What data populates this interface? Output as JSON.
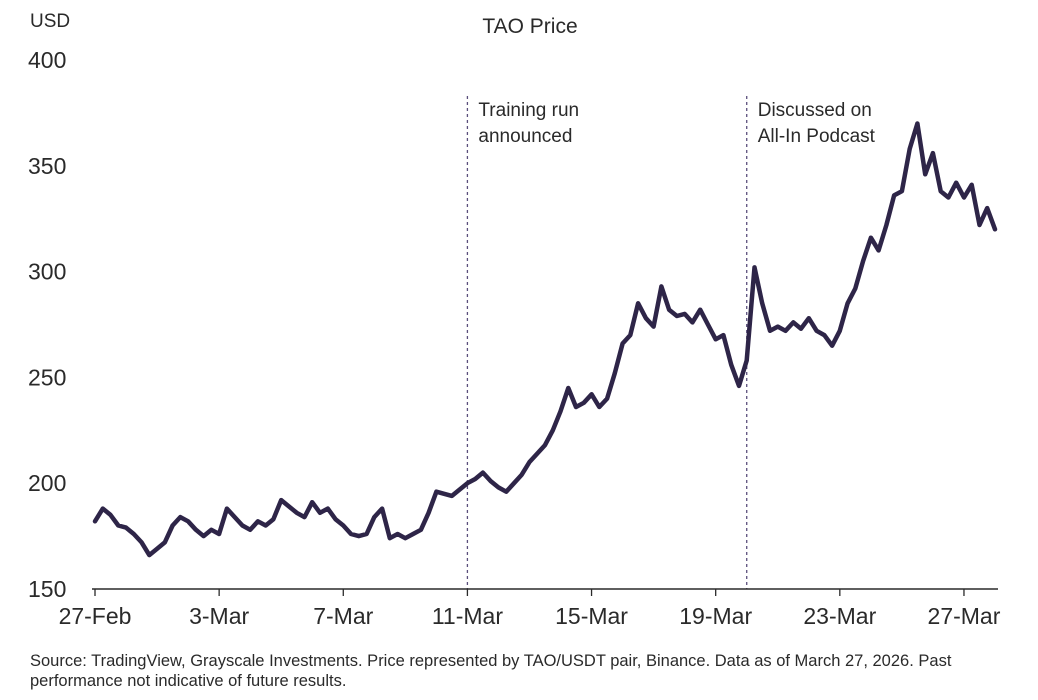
{
  "chart_data": {
    "type": "line",
    "title": "TAO Price",
    "ylabel": "USD",
    "xlabel": "",
    "ylim": [
      150,
      400
    ],
    "yticks": [
      150,
      200,
      250,
      300,
      350,
      400
    ],
    "xlim": [
      "2026-02-27",
      "2026-03-28"
    ],
    "xticks": [
      {
        "date": "2026-02-27",
        "label": "27-Feb"
      },
      {
        "date": "2026-03-03",
        "label": "3-Mar"
      },
      {
        "date": "2026-03-07",
        "label": "7-Mar"
      },
      {
        "date": "2026-03-11",
        "label": "11-Mar"
      },
      {
        "date": "2026-03-15",
        "label": "15-Mar"
      },
      {
        "date": "2026-03-19",
        "label": "19-Mar"
      },
      {
        "date": "2026-03-23",
        "label": "23-Mar"
      },
      {
        "date": "2026-03-27",
        "label": "27-Mar"
      }
    ],
    "grid": false,
    "line_color": "#2e2548",
    "series": [
      {
        "points": [
          [
            "2026-02-27 00:00",
            182
          ],
          [
            "2026-02-27 06:00",
            188
          ],
          [
            "2026-02-27 12:00",
            185
          ],
          [
            "2026-02-27 18:00",
            180
          ],
          [
            "2026-02-28 00:00",
            179
          ],
          [
            "2026-02-28 06:00",
            176
          ],
          [
            "2026-02-28 12:00",
            172
          ],
          [
            "2026-02-28 18:00",
            166
          ],
          [
            "2026-03-01 00:00",
            169
          ],
          [
            "2026-03-01 06:00",
            172
          ],
          [
            "2026-03-01 12:00",
            180
          ],
          [
            "2026-03-01 18:00",
            184
          ],
          [
            "2026-03-02 00:00",
            182
          ],
          [
            "2026-03-02 06:00",
            178
          ],
          [
            "2026-03-02 12:00",
            175
          ],
          [
            "2026-03-02 18:00",
            178
          ],
          [
            "2026-03-03 00:00",
            176
          ],
          [
            "2026-03-03 06:00",
            188
          ],
          [
            "2026-03-03 12:00",
            184
          ],
          [
            "2026-03-03 18:00",
            180
          ],
          [
            "2026-03-04 00:00",
            178
          ],
          [
            "2026-03-04 06:00",
            182
          ],
          [
            "2026-03-04 12:00",
            180
          ],
          [
            "2026-03-04 18:00",
            183
          ],
          [
            "2026-03-05 00:00",
            192
          ],
          [
            "2026-03-05 06:00",
            189
          ],
          [
            "2026-03-05 12:00",
            186
          ],
          [
            "2026-03-05 18:00",
            184
          ],
          [
            "2026-03-06 00:00",
            191
          ],
          [
            "2026-03-06 06:00",
            186
          ],
          [
            "2026-03-06 12:00",
            188
          ],
          [
            "2026-03-06 18:00",
            183
          ],
          [
            "2026-03-07 00:00",
            180
          ],
          [
            "2026-03-07 06:00",
            176
          ],
          [
            "2026-03-07 12:00",
            175
          ],
          [
            "2026-03-07 18:00",
            176
          ],
          [
            "2026-03-08 00:00",
            184
          ],
          [
            "2026-03-08 06:00",
            188
          ],
          [
            "2026-03-08 12:00",
            174
          ],
          [
            "2026-03-08 18:00",
            176
          ],
          [
            "2026-03-09 00:00",
            174
          ],
          [
            "2026-03-09 06:00",
            176
          ],
          [
            "2026-03-09 12:00",
            178
          ],
          [
            "2026-03-09 18:00",
            186
          ],
          [
            "2026-03-10 00:00",
            196
          ],
          [
            "2026-03-10 06:00",
            195
          ],
          [
            "2026-03-10 12:00",
            194
          ],
          [
            "2026-03-10 18:00",
            197
          ],
          [
            "2026-03-11 00:00",
            200
          ],
          [
            "2026-03-11 06:00",
            202
          ],
          [
            "2026-03-11 12:00",
            205
          ],
          [
            "2026-03-11 18:00",
            201
          ],
          [
            "2026-03-12 00:00",
            198
          ],
          [
            "2026-03-12 06:00",
            196
          ],
          [
            "2026-03-12 12:00",
            200
          ],
          [
            "2026-03-12 18:00",
            204
          ],
          [
            "2026-03-13 00:00",
            210
          ],
          [
            "2026-03-13 06:00",
            214
          ],
          [
            "2026-03-13 12:00",
            218
          ],
          [
            "2026-03-13 18:00",
            225
          ],
          [
            "2026-03-14 00:00",
            234
          ],
          [
            "2026-03-14 06:00",
            245
          ],
          [
            "2026-03-14 12:00",
            236
          ],
          [
            "2026-03-14 18:00",
            238
          ],
          [
            "2026-03-15 00:00",
            242
          ],
          [
            "2026-03-15 06:00",
            236
          ],
          [
            "2026-03-15 12:00",
            240
          ],
          [
            "2026-03-15 18:00",
            252
          ],
          [
            "2026-03-16 00:00",
            266
          ],
          [
            "2026-03-16 06:00",
            270
          ],
          [
            "2026-03-16 12:00",
            285
          ],
          [
            "2026-03-16 18:00",
            278
          ],
          [
            "2026-03-17 00:00",
            274
          ],
          [
            "2026-03-17 06:00",
            293
          ],
          [
            "2026-03-17 12:00",
            282
          ],
          [
            "2026-03-17 18:00",
            279
          ],
          [
            "2026-03-18 00:00",
            280
          ],
          [
            "2026-03-18 06:00",
            276
          ],
          [
            "2026-03-18 12:00",
            282
          ],
          [
            "2026-03-18 18:00",
            275
          ],
          [
            "2026-03-19 00:00",
            268
          ],
          [
            "2026-03-19 06:00",
            270
          ],
          [
            "2026-03-19 12:00",
            256
          ],
          [
            "2026-03-19 18:00",
            246
          ],
          [
            "2026-03-20 00:00",
            258
          ],
          [
            "2026-03-20 06:00",
            302
          ],
          [
            "2026-03-20 12:00",
            285
          ],
          [
            "2026-03-20 18:00",
            272
          ],
          [
            "2026-03-21 00:00",
            274
          ],
          [
            "2026-03-21 06:00",
            272
          ],
          [
            "2026-03-21 12:00",
            276
          ],
          [
            "2026-03-21 18:00",
            273
          ],
          [
            "2026-03-22 00:00",
            278
          ],
          [
            "2026-03-22 06:00",
            272
          ],
          [
            "2026-03-22 12:00",
            270
          ],
          [
            "2026-03-22 18:00",
            265
          ],
          [
            "2026-03-23 00:00",
            272
          ],
          [
            "2026-03-23 06:00",
            285
          ],
          [
            "2026-03-23 12:00",
            292
          ],
          [
            "2026-03-23 18:00",
            305
          ],
          [
            "2026-03-24 00:00",
            316
          ],
          [
            "2026-03-24 06:00",
            310
          ],
          [
            "2026-03-24 12:00",
            322
          ],
          [
            "2026-03-24 18:00",
            336
          ],
          [
            "2026-03-25 00:00",
            338
          ],
          [
            "2026-03-25 06:00",
            358
          ],
          [
            "2026-03-25 12:00",
            370
          ],
          [
            "2026-03-25 18:00",
            346
          ],
          [
            "2026-03-26 00:00",
            356
          ],
          [
            "2026-03-26 06:00",
            338
          ],
          [
            "2026-03-26 12:00",
            335
          ],
          [
            "2026-03-26 18:00",
            342
          ],
          [
            "2026-03-27 00:00",
            335
          ],
          [
            "2026-03-27 06:00",
            341
          ],
          [
            "2026-03-27 12:00",
            322
          ],
          [
            "2026-03-27 18:00",
            330
          ],
          [
            "2026-03-28 00:00",
            320
          ]
        ]
      }
    ],
    "annotations": [
      {
        "date": "2026-03-11",
        "lines": [
          "Training run",
          "announced"
        ]
      },
      {
        "date": "2026-03-20",
        "lines": [
          "Discussed on",
          "All-In Podcast"
        ]
      }
    ]
  },
  "source_note": "Source: TradingView, Grayscale Investments. Price represented by TAO/USDT pair, Binance. Data as of March 27, 2026. Past performance not indicative of future results."
}
